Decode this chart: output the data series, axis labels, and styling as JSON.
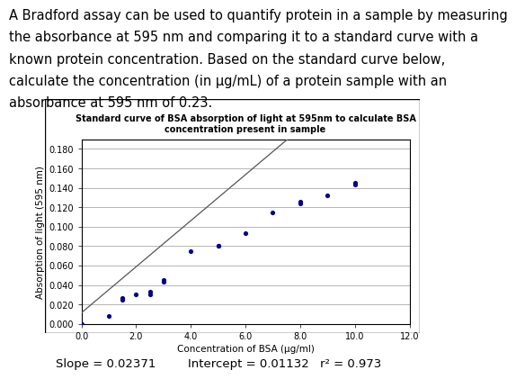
{
  "title_line1": "Standard curve of BSA absorption of light at 595nm to calculate BSA",
  "title_line2": "concentration present in sample",
  "xlabel": "Concentration of BSA (μg/ml)",
  "ylabel": "Absorption of light (595 nm)",
  "slope": 0.02371,
  "intercept": 0.01132,
  "r2": 0.973,
  "scatter_x": [
    0.0,
    1.0,
    1.5,
    1.5,
    2.0,
    2.5,
    2.5,
    3.0,
    3.0,
    4.0,
    5.0,
    5.0,
    6.0,
    7.0,
    8.0,
    8.0,
    9.0,
    10.0,
    10.0
  ],
  "scatter_y": [
    0.0,
    0.008,
    0.025,
    0.027,
    0.03,
    0.03,
    0.033,
    0.043,
    0.045,
    0.075,
    0.08,
    0.08,
    0.093,
    0.115,
    0.124,
    0.126,
    0.132,
    0.143,
    0.145
  ],
  "dot_color": "#00008B",
  "line_color": "#555555",
  "xlim": [
    0.0,
    12.0
  ],
  "ylim": [
    0.0,
    0.19
  ],
  "xticks": [
    0.0,
    2.0,
    4.0,
    6.0,
    8.0,
    10.0,
    12.0
  ],
  "xtick_labels": [
    "0.0",
    "2.0",
    "4.0",
    "6.0",
    "8.0",
    "10.0",
    "12.0"
  ],
  "yticks": [
    0.0,
    0.02,
    0.04,
    0.06,
    0.08,
    0.1,
    0.12,
    0.14,
    0.16,
    0.18
  ],
  "ytick_labels": [
    "0.000",
    "0.020",
    "0.040",
    "0.060",
    "0.080",
    "0.100",
    "0.120",
    "0.140",
    "0.160",
    "0.180"
  ],
  "text_line1": "A Bradford assay can be used to quantify protein in a sample by measuring",
  "text_line2": "the absorbance at 595 nm and comparing it to a standard curve with a",
  "text_line3": "known protein concentration. Based on the standard curve below,",
  "text_line4": "calculate the concentration (in μg/mL) of a protein sample with an",
  "text_line5": "absorbance at 595 nm of 0.23.",
  "footer_slope": "Slope = 0.02371",
  "footer_intercept": "Intercept = 0.01132",
  "footer_r2": "r² = 0.973",
  "text_fontsize": 10.5,
  "title_fontsize": 7.0,
  "axis_label_fontsize": 7.5,
  "tick_fontsize": 7.0,
  "footer_fontsize": 9.5
}
